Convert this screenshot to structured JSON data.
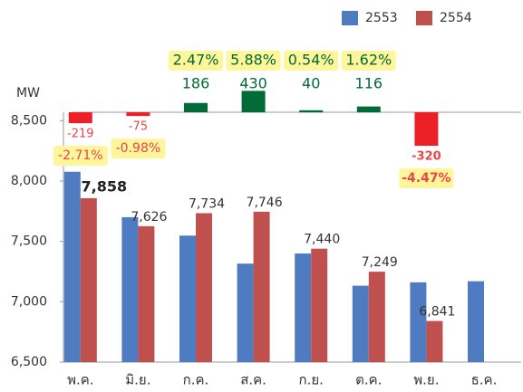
{
  "chart_data": {
    "type": "bar",
    "y_axis_label": "MW",
    "categories": [
      "พ.ค.",
      "มิ.ย.",
      "ก.ค.",
      "ส.ค.",
      "ก.ย.",
      "ต.ค.",
      "พ.ย.",
      "ธ.ค."
    ],
    "series": [
      {
        "name": "2553",
        "color": "#4f7bc0",
        "values": [
          8077,
          7701,
          7548,
          7316,
          7400,
          7133,
          7161,
          7170
        ]
      },
      {
        "name": "2554",
        "color": "#c0504d",
        "values": [
          7858,
          7626,
          7734,
          7746,
          7440,
          7249,
          6841,
          null
        ],
        "value_labels": [
          "7,858",
          "7,626",
          "7,734",
          "7,746",
          "7,440",
          "7,249",
          "6,841",
          null
        ]
      }
    ],
    "differences": {
      "positive_color": "#006b36",
      "negative_color": "#ec2027",
      "values": [
        -219,
        -75,
        186,
        430,
        40,
        116,
        -320,
        null
      ],
      "percent_labels": [
        "-2.71%",
        "-0.98%",
        "2.47%",
        "5.88%",
        "0.54%",
        "1.62%",
        "-4.47%",
        null
      ]
    },
    "ylim": [
      6500,
      8570
    ],
    "yticks": [
      {
        "value": 6500,
        "label": "6,500"
      },
      {
        "value": 7000,
        "label": "7,000"
      },
      {
        "value": 7500,
        "label": "7,500"
      },
      {
        "value": 8000,
        "label": "8,000"
      },
      {
        "value": 8500,
        "label": "8,500"
      }
    ],
    "legend": "top-right"
  }
}
